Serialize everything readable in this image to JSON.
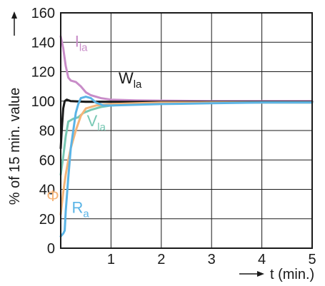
{
  "chart_data": {
    "type": "line",
    "title": "",
    "ylabel": "% of 15 min. value",
    "ylabel_arrow": "→",
    "xlabel": "t (min.)",
    "xlabel_arrow": "→",
    "xlim": [
      0,
      5
    ],
    "ylim": [
      0,
      160
    ],
    "x_ticks": [
      1,
      2,
      3,
      4,
      5
    ],
    "y_ticks": [
      0,
      20,
      40,
      60,
      80,
      100,
      120,
      140,
      160
    ],
    "grid": true,
    "legend": "inline labels",
    "series": [
      {
        "name": "I",
        "subscript": "la",
        "color": "#c88cc8",
        "label_pos": [
          0.28,
          137
        ],
        "points": [
          [
            0,
            144
          ],
          [
            0.05,
            136
          ],
          [
            0.1,
            124
          ],
          [
            0.15,
            116
          ],
          [
            0.2,
            114
          ],
          [
            0.3,
            113
          ],
          [
            0.4,
            110
          ],
          [
            0.5,
            106
          ],
          [
            0.6,
            104
          ],
          [
            0.8,
            102
          ],
          [
            1.0,
            101
          ],
          [
            1.5,
            100.5
          ],
          [
            2.0,
            100.3
          ],
          [
            3.0,
            100
          ],
          [
            4.0,
            100
          ],
          [
            5.0,
            100
          ]
        ]
      },
      {
        "name": "W",
        "subscript": "la",
        "color": "#1a1a1a",
        "label_pos": [
          1.15,
          112
        ],
        "points": [
          [
            0,
            68
          ],
          [
            0.02,
            80
          ],
          [
            0.05,
            95
          ],
          [
            0.08,
            100
          ],
          [
            0.12,
            101
          ],
          [
            0.2,
            100
          ],
          [
            0.5,
            99.5
          ],
          [
            1.0,
            99.5
          ],
          [
            2.0,
            99.5
          ],
          [
            3.0,
            99.5
          ],
          [
            4.0,
            99.5
          ],
          [
            5.0,
            99.5
          ]
        ]
      },
      {
        "name": "V",
        "subscript": "la",
        "color": "#78c8b4",
        "label_pos": [
          0.52,
          83
        ],
        "points": [
          [
            0,
            50
          ],
          [
            0.05,
            62
          ],
          [
            0.1,
            76
          ],
          [
            0.15,
            86
          ],
          [
            0.25,
            88
          ],
          [
            0.35,
            89
          ],
          [
            0.45,
            92
          ],
          [
            0.6,
            94
          ],
          [
            0.8,
            96
          ],
          [
            1.0,
            97
          ],
          [
            1.5,
            98
          ],
          [
            2.0,
            98.5
          ],
          [
            3.0,
            99
          ],
          [
            4.0,
            99
          ],
          [
            5.0,
            99
          ]
        ]
      },
      {
        "name": "Φ",
        "subscript": "",
        "color": "#f5b478",
        "label_pos": [
          -0.28,
          32
        ],
        "points": [
          [
            0,
            23
          ],
          [
            0.05,
            38
          ],
          [
            0.1,
            50
          ],
          [
            0.15,
            60
          ],
          [
            0.2,
            68
          ],
          [
            0.3,
            80
          ],
          [
            0.4,
            90
          ],
          [
            0.5,
            95
          ],
          [
            0.7,
            97
          ],
          [
            1.0,
            98
          ],
          [
            1.5,
            98.5
          ],
          [
            2.0,
            99
          ],
          [
            3.0,
            99
          ],
          [
            4.0,
            99
          ],
          [
            5.0,
            99
          ]
        ]
      },
      {
        "name": "R",
        "subscript": "a",
        "color": "#5ab4e6",
        "label_pos": [
          0.22,
          24
        ],
        "points": [
          [
            0,
            8
          ],
          [
            0.05,
            10
          ],
          [
            0.08,
            12
          ],
          [
            0.1,
            25
          ],
          [
            0.15,
            48
          ],
          [
            0.2,
            68
          ],
          [
            0.25,
            80
          ],
          [
            0.3,
            92
          ],
          [
            0.35,
            98
          ],
          [
            0.4,
            102
          ],
          [
            0.5,
            103
          ],
          [
            0.6,
            102
          ],
          [
            0.7,
            99
          ],
          [
            0.85,
            97
          ],
          [
            1.0,
            97
          ],
          [
            1.5,
            97.5
          ],
          [
            2.0,
            98
          ],
          [
            3.0,
            98.5
          ],
          [
            4.0,
            99
          ],
          [
            5.0,
            99
          ]
        ]
      }
    ]
  }
}
